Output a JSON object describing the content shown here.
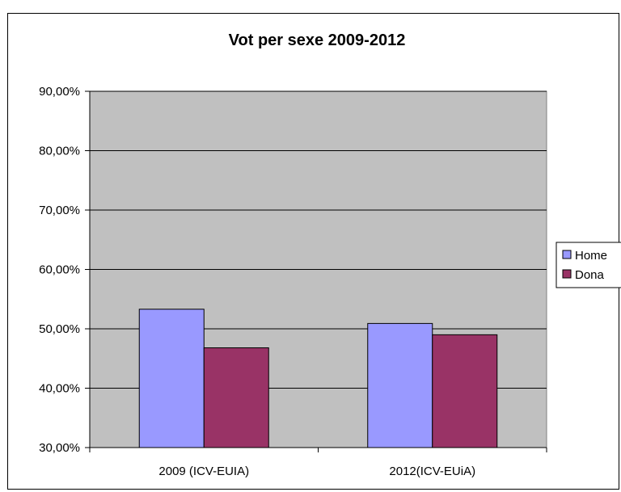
{
  "chart_data": {
    "type": "bar",
    "title": "Vot per sexe 2009-2012",
    "xlabel": "",
    "ylabel": "",
    "categories": [
      "2009 (ICV-EUIA)",
      "2012(ICV-EUiA)"
    ],
    "series": [
      {
        "name": "Home",
        "values": [
          53.3,
          50.9
        ],
        "color": "#9999ff"
      },
      {
        "name": "Dona",
        "values": [
          46.8,
          49.0
        ],
        "color": "#993366"
      }
    ],
    "ylim": [
      30,
      90
    ],
    "y_ticks": [
      "30,00%",
      "40,00%",
      "50,00%",
      "60,00%",
      "70,00%",
      "80,00%",
      "90,00%"
    ],
    "y_tick_values": [
      30,
      40,
      50,
      60,
      70,
      80,
      90
    ],
    "grid": true,
    "plot_background": "#c0c0c0",
    "legend_position": "right"
  }
}
